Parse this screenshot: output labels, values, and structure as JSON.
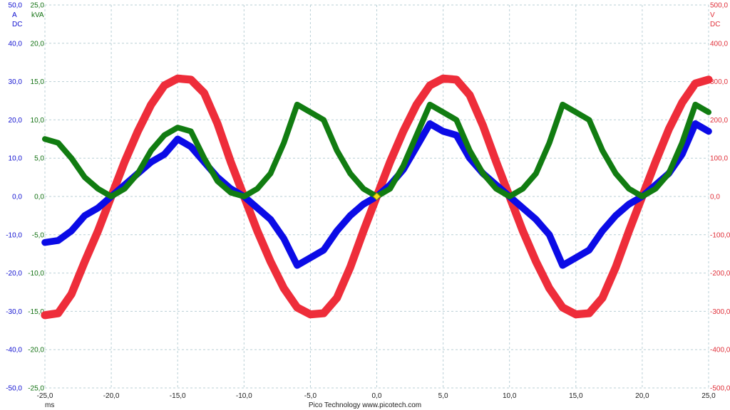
{
  "chart_data": {
    "type": "line",
    "x_unit": "ms",
    "x_range": [
      -25,
      25
    ],
    "x_ticks": [
      "-25,0",
      "-20,0",
      "-15,0",
      "-10,0",
      "-5,0",
      "0,0",
      "5,0",
      "10,0",
      "15,0",
      "20,0",
      "25,0"
    ],
    "grid": true,
    "axes": [
      {
        "side": "left",
        "color": "#1010d0",
        "unit": "A",
        "coupling": "DC",
        "range": [
          -50,
          50
        ],
        "ticks": [
          "50,0",
          "40,0",
          "30,0",
          "20,0",
          "10,0",
          "0,0",
          "-10,0",
          "-20,0",
          "-30,0",
          "-40,0",
          "-50,0"
        ]
      },
      {
        "side": "left-inner",
        "color": "#107010",
        "unit": "kVA",
        "range": [
          -25,
          25
        ],
        "ticks": [
          "25,0",
          "20,0",
          "15,0",
          "10,0",
          "5,0",
          "0,0",
          "-5,0",
          "-10,0",
          "-15,0",
          "-20,0",
          "-25,0"
        ]
      },
      {
        "side": "right",
        "color": "#e0303a",
        "unit": "V",
        "coupling": "DC",
        "range": [
          -500,
          500
        ],
        "ticks": [
          "500,0",
          "400,0",
          "300,0",
          "200,0",
          "100,0",
          "0,0",
          "-100,0",
          "-200,0",
          "-300,0",
          "-400,0",
          "-500,0"
        ]
      }
    ],
    "series": [
      {
        "axis": 2,
        "color": "#ee2d3a",
        "band": 7,
        "points": [
          [
            -25,
            -310
          ],
          [
            -24,
            -305
          ],
          [
            -23,
            -255
          ],
          [
            -22,
            -170
          ],
          [
            -21,
            -90
          ],
          [
            -20,
            0
          ],
          [
            -19,
            90
          ],
          [
            -18,
            170
          ],
          [
            -17,
            240
          ],
          [
            -16,
            290
          ],
          [
            -15,
            308
          ],
          [
            -14,
            305
          ],
          [
            -13,
            270
          ],
          [
            -12,
            190
          ],
          [
            -11,
            90
          ],
          [
            -10,
            0
          ],
          [
            -9,
            -90
          ],
          [
            -8,
            -170
          ],
          [
            -7,
            -240
          ],
          [
            -6,
            -290
          ],
          [
            -5,
            -308
          ],
          [
            -4,
            -305
          ],
          [
            -3,
            -265
          ],
          [
            -2,
            -185
          ],
          [
            -1,
            -90
          ],
          [
            0,
            0
          ],
          [
            1,
            90
          ],
          [
            2,
            170
          ],
          [
            3,
            240
          ],
          [
            4,
            290
          ],
          [
            5,
            308
          ],
          [
            6,
            305
          ],
          [
            7,
            265
          ],
          [
            8,
            185
          ],
          [
            9,
            90
          ],
          [
            10,
            0
          ],
          [
            11,
            -90
          ],
          [
            12,
            -170
          ],
          [
            13,
            -240
          ],
          [
            14,
            -290
          ],
          [
            15,
            -308
          ],
          [
            16,
            -305
          ],
          [
            17,
            -265
          ],
          [
            18,
            -185
          ],
          [
            19,
            -90
          ],
          [
            20,
            0
          ],
          [
            21,
            90
          ],
          [
            22,
            175
          ],
          [
            23,
            245
          ],
          [
            24,
            295
          ],
          [
            25,
            305
          ]
        ]
      },
      {
        "axis": 0,
        "color": "#0b0be6",
        "band": 6,
        "points": [
          [
            -25,
            -12
          ],
          [
            -24,
            -11.5
          ],
          [
            -23,
            -9
          ],
          [
            -22,
            -5
          ],
          [
            -21,
            -3
          ],
          [
            -20,
            0
          ],
          [
            -19,
            3
          ],
          [
            -18,
            6
          ],
          [
            -17,
            9
          ],
          [
            -16,
            11
          ],
          [
            -15,
            15
          ],
          [
            -14,
            13
          ],
          [
            -13,
            9
          ],
          [
            -12,
            5
          ],
          [
            -11,
            2
          ],
          [
            -10,
            0
          ],
          [
            -9,
            -3
          ],
          [
            -8,
            -6
          ],
          [
            -7,
            -11
          ],
          [
            -6,
            -18
          ],
          [
            -5,
            -16
          ],
          [
            -4,
            -14
          ],
          [
            -3,
            -9
          ],
          [
            -2,
            -5
          ],
          [
            -1,
            -2
          ],
          [
            0,
            0
          ],
          [
            1,
            3
          ],
          [
            2,
            7
          ],
          [
            3,
            13
          ],
          [
            4,
            19
          ],
          [
            5,
            17
          ],
          [
            6,
            16
          ],
          [
            7,
            10
          ],
          [
            8,
            6
          ],
          [
            9,
            3
          ],
          [
            10,
            0
          ],
          [
            11,
            -3
          ],
          [
            12,
            -6
          ],
          [
            13,
            -10
          ],
          [
            14,
            -18
          ],
          [
            15,
            -16
          ],
          [
            16,
            -14
          ],
          [
            17,
            -9
          ],
          [
            18,
            -5
          ],
          [
            19,
            -2
          ],
          [
            20,
            0
          ],
          [
            21,
            3
          ],
          [
            22,
            6
          ],
          [
            23,
            11
          ],
          [
            24,
            19
          ],
          [
            25,
            17
          ]
        ]
      },
      {
        "axis": 1,
        "color": "#117c11",
        "band": 5,
        "points": [
          [
            -25,
            7.5
          ],
          [
            -24,
            7
          ],
          [
            -23,
            5
          ],
          [
            -22,
            2.5
          ],
          [
            -21,
            1
          ],
          [
            -20,
            0
          ],
          [
            -19,
            1
          ],
          [
            -18,
            3
          ],
          [
            -17,
            6
          ],
          [
            -16,
            8
          ],
          [
            -15,
            9
          ],
          [
            -14,
            8.5
          ],
          [
            -13,
            5
          ],
          [
            -12,
            2
          ],
          [
            -11,
            0.5
          ],
          [
            -10,
            0
          ],
          [
            -9,
            1
          ],
          [
            -8,
            3
          ],
          [
            -7,
            7
          ],
          [
            -6,
            12
          ],
          [
            -5,
            11
          ],
          [
            -4,
            10
          ],
          [
            -3,
            6
          ],
          [
            -2,
            3
          ],
          [
            -1,
            1
          ],
          [
            0,
            0
          ],
          [
            1,
            1
          ],
          [
            2,
            4
          ],
          [
            3,
            8
          ],
          [
            4,
            12
          ],
          [
            5,
            11
          ],
          [
            6,
            10
          ],
          [
            7,
            6
          ],
          [
            8,
            3
          ],
          [
            9,
            1
          ],
          [
            10,
            0
          ],
          [
            11,
            1
          ],
          [
            12,
            3
          ],
          [
            13,
            7
          ],
          [
            14,
            12
          ],
          [
            15,
            11
          ],
          [
            16,
            10
          ],
          [
            17,
            6
          ],
          [
            18,
            3
          ],
          [
            19,
            1
          ],
          [
            20,
            0
          ],
          [
            21,
            1
          ],
          [
            22,
            3
          ],
          [
            23,
            7
          ],
          [
            24,
            12
          ],
          [
            25,
            11
          ]
        ]
      }
    ],
    "marker": {
      "x": 0,
      "y": 0,
      "color": "#f2e21b"
    },
    "footer_text": "Pico Technology   www.picotech.com"
  }
}
